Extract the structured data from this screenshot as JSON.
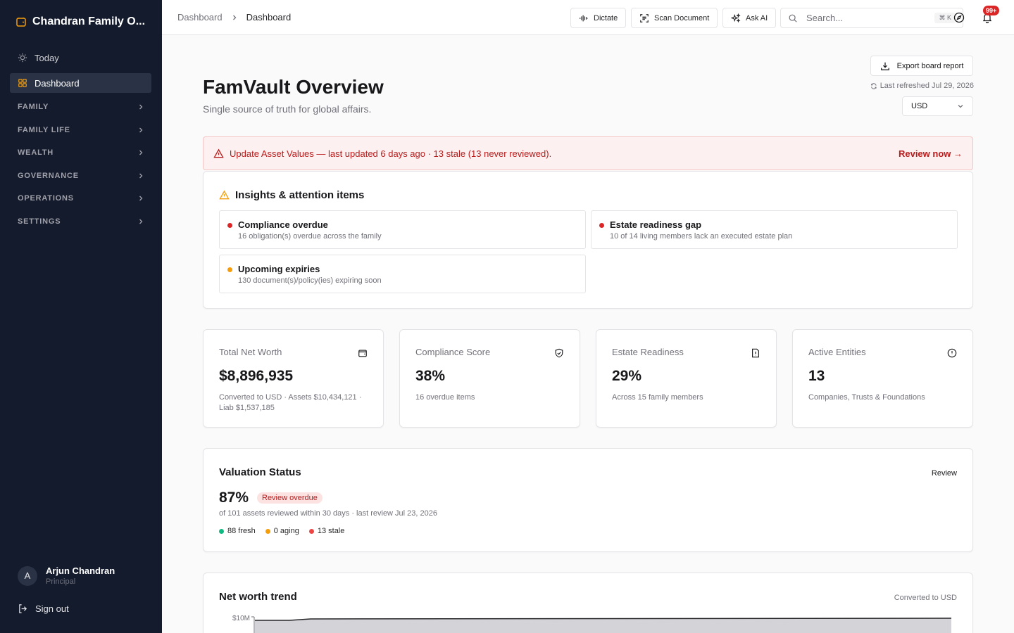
{
  "sidebar": {
    "brand": "Chandran Family O...",
    "items": [
      {
        "label": "Today"
      },
      {
        "label": "Dashboard"
      }
    ],
    "sections": [
      "FAMILY",
      "FAMILY LIFE",
      "WEALTH",
      "GOVERNANCE",
      "OPERATIONS",
      "SETTINGS"
    ],
    "user": {
      "initial": "A",
      "name": "Arjun Chandran",
      "role": "Principal"
    },
    "signout": "Sign out"
  },
  "topbar": {
    "crumbs": [
      "Dashboard",
      "Dashboard"
    ],
    "dictate": "Dictate",
    "scan": "Scan Document",
    "ask": "Ask AI",
    "search_placeholder": "Search...",
    "shortcut": "⌘ K",
    "notifications_badge": "99+"
  },
  "header": {
    "title": "FamVault Overview",
    "subtitle": "Single source of truth for global affairs.",
    "export": "Export board report",
    "refreshed": "Last refreshed Jul 29, 2026",
    "currency": "USD"
  },
  "alert": {
    "text": "Update Asset Values — last updated 6 days ago · 13 stale (13 never reviewed).",
    "link": "Review now →"
  },
  "insights": {
    "title": "Insights & attention items",
    "items": [
      {
        "title": "Compliance overdue",
        "desc": "16 obligation(s) overdue across the family",
        "color": "#dc2626"
      },
      {
        "title": "Estate readiness gap",
        "desc": "10 of 14 living members lack an executed estate plan",
        "color": "#dc2626"
      },
      {
        "title": "Upcoming expiries",
        "desc": "130 document(s)/policy(ies) expiring soon",
        "color": "#f59e0b"
      }
    ]
  },
  "stats": [
    {
      "label": "Total Net Worth",
      "value": "$8,896,935",
      "sub": "Converted to USD · Assets $10,434,121 · Liab $1,537,185",
      "icon": "wallet-icon"
    },
    {
      "label": "Compliance Score",
      "value": "38%",
      "sub": "16 overdue items",
      "icon": "shield-check-icon"
    },
    {
      "label": "Estate Readiness",
      "value": "29%",
      "sub": "Across 15 family members",
      "icon": "file-alert-icon"
    },
    {
      "label": "Active Entities",
      "value": "13",
      "sub": "Companies, Trusts & Foundations",
      "icon": "alert-circle-icon"
    }
  ],
  "valuation": {
    "title": "Valuation Status",
    "review": "Review",
    "percent": "87%",
    "badge": "Review overdue",
    "desc": "of 101 assets reviewed within 30 days · last review Jul 23, 2026",
    "legend": [
      {
        "label": "88 fresh",
        "color": "#10b981"
      },
      {
        "label": "0 aging",
        "color": "#f59e0b"
      },
      {
        "label": "13 stale",
        "color": "#ef4444"
      }
    ]
  },
  "trend": {
    "title": "Net worth trend",
    "note": "Converted to USD",
    "y_tick": "$10M"
  },
  "colors": {
    "sidebar_bg": "#141b2d",
    "danger": "#b91c1c",
    "accent_active": "#f59e0b"
  }
}
